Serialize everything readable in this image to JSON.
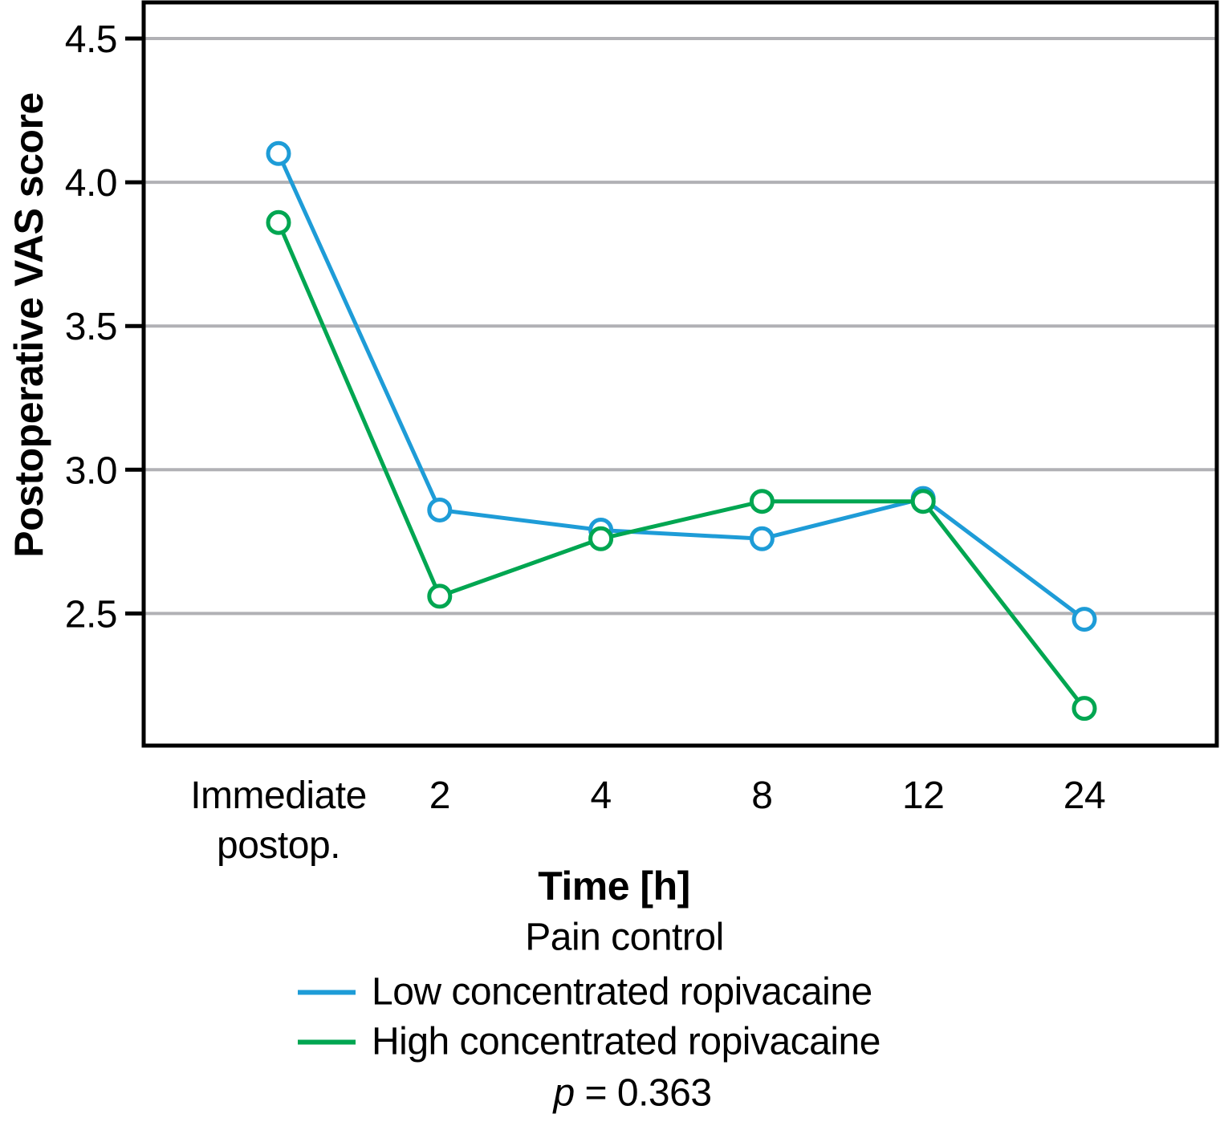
{
  "chart_data": {
    "type": "line",
    "title": "",
    "xlabel": "Time [h]",
    "ylabel": "Postoperative VAS score",
    "legend_title": "Pain control",
    "legend_position": "bottom",
    "grid": "horizontal",
    "marker": "open-circle",
    "categories": [
      "Immediate postop.",
      "2",
      "4",
      "8",
      "12",
      "24"
    ],
    "category_lines": [
      [
        "Immediate",
        "postop."
      ],
      [
        "2"
      ],
      [
        "4"
      ],
      [
        "8"
      ],
      [
        "12"
      ],
      [
        "24"
      ]
    ],
    "series": [
      {
        "name": "Low concentrated ropivacaine",
        "color": "#1e9cd7",
        "values": [
          4.1,
          2.86,
          2.79,
          2.76,
          2.9,
          2.48
        ]
      },
      {
        "name": "High concentrated ropivacaine",
        "color": "#00a651",
        "values": [
          3.86,
          2.56,
          2.76,
          2.89,
          2.89,
          2.17
        ]
      }
    ],
    "yticks": [
      4.5,
      4.0,
      3.5,
      3.0,
      2.5
    ],
    "ytick_labels": [
      "4.5",
      "4.0",
      "3.5",
      "3.0",
      "2.5"
    ],
    "ylim": [
      2.04,
      4.63
    ],
    "annotation": {
      "symbol": "p",
      "rest": " = 0.363"
    },
    "colors": {
      "grid": "#b1b1b5",
      "axis": "#000000",
      "background": "#ffffff",
      "marker_fill": "#ffffff"
    }
  }
}
